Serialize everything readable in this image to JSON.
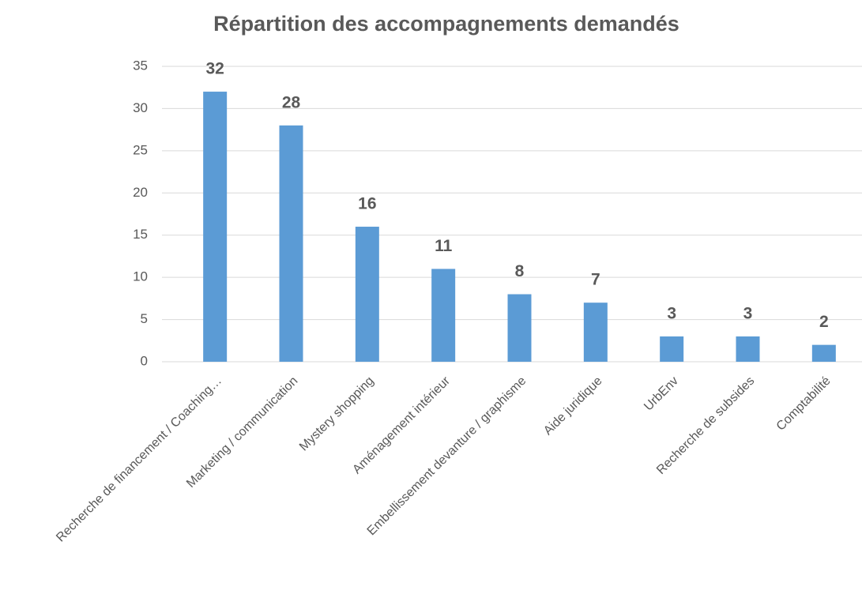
{
  "chart_data": {
    "type": "bar",
    "title": "Répartition des accompagnements demandés",
    "categories": [
      "Recherche de financement / Coaching…",
      "Marketing / communication",
      "Mystery shopping",
      "Aménagement intérieur",
      "Embellissement devanture / graphisme",
      "Aide juridique",
      "UrbEnv",
      "Recherche de subsides",
      "Comptabilité"
    ],
    "values": [
      32,
      28,
      16,
      11,
      8,
      7,
      3,
      3,
      2
    ],
    "color": "#5b9bd5",
    "ylim": [
      0,
      35
    ],
    "yticks": [
      0,
      5,
      10,
      15,
      20,
      25,
      30,
      35
    ],
    "grid": true
  }
}
